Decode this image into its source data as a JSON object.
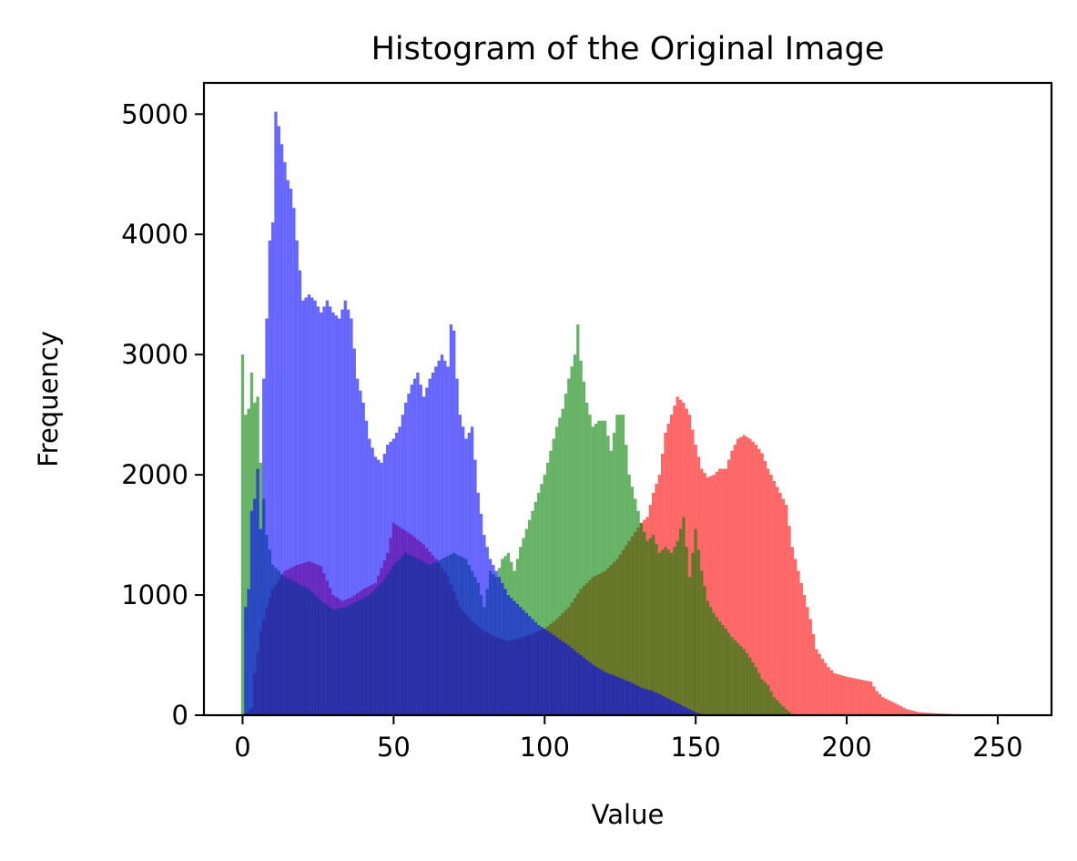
{
  "chart_data": {
    "type": "bar",
    "title": "Histogram of the Original Image",
    "xlabel": "Value",
    "ylabel": "Frequency",
    "xlim": [
      -12.8,
      267.8
    ],
    "ylim": [
      0,
      5260
    ],
    "xticks": [
      0,
      50,
      100,
      150,
      200,
      250
    ],
    "yticks": [
      0,
      1000,
      2000,
      3000,
      4000,
      5000
    ],
    "grid": false,
    "legend": "none",
    "bar_width": 1,
    "colors": {
      "red": "#ff0000",
      "green": "#008000",
      "blue": "#0000ff"
    },
    "opacity": 0.6,
    "series": [
      {
        "color": "red",
        "points": [
          [
            0,
            0
          ],
          [
            3,
            60
          ],
          [
            4,
            350
          ],
          [
            6,
            700
          ],
          [
            8,
            900
          ],
          [
            10,
            1050
          ],
          [
            14,
            1200
          ],
          [
            18,
            1250
          ],
          [
            22,
            1280
          ],
          [
            26,
            1240
          ],
          [
            30,
            1000
          ],
          [
            33,
            950
          ],
          [
            36,
            980
          ],
          [
            40,
            1050
          ],
          [
            44,
            1100
          ],
          [
            48,
            1350
          ],
          [
            50,
            1600
          ],
          [
            53,
            1550
          ],
          [
            56,
            1500
          ],
          [
            60,
            1420
          ],
          [
            64,
            1300
          ],
          [
            68,
            1150
          ],
          [
            72,
            900
          ],
          [
            76,
            780
          ],
          [
            80,
            700
          ],
          [
            84,
            650
          ],
          [
            88,
            620
          ],
          [
            92,
            640
          ],
          [
            96,
            680
          ],
          [
            100,
            720
          ],
          [
            104,
            800
          ],
          [
            108,
            900
          ],
          [
            112,
            1050
          ],
          [
            116,
            1150
          ],
          [
            120,
            1200
          ],
          [
            124,
            1300
          ],
          [
            128,
            1450
          ],
          [
            132,
            1600
          ],
          [
            134,
            1650
          ],
          [
            136,
            1850
          ],
          [
            138,
            2000
          ],
          [
            140,
            2350
          ],
          [
            142,
            2500
          ],
          [
            144,
            2650
          ],
          [
            146,
            2600
          ],
          [
            148,
            2500
          ],
          [
            150,
            2250
          ],
          [
            152,
            2050
          ],
          [
            154,
            1980
          ],
          [
            156,
            2000
          ],
          [
            158,
            2050
          ],
          [
            160,
            2050
          ],
          [
            162,
            2200
          ],
          [
            164,
            2300
          ],
          [
            166,
            2330
          ],
          [
            168,
            2300
          ],
          [
            170,
            2250
          ],
          [
            172,
            2180
          ],
          [
            174,
            2050
          ],
          [
            176,
            1950
          ],
          [
            178,
            1850
          ],
          [
            180,
            1750
          ],
          [
            182,
            1400
          ],
          [
            184,
            1200
          ],
          [
            186,
            1000
          ],
          [
            188,
            800
          ],
          [
            190,
            550
          ],
          [
            192,
            470
          ],
          [
            194,
            400
          ],
          [
            196,
            350
          ],
          [
            200,
            320
          ],
          [
            204,
            300
          ],
          [
            208,
            280
          ],
          [
            210,
            200
          ],
          [
            212,
            150
          ],
          [
            216,
            100
          ],
          [
            220,
            50
          ],
          [
            224,
            25
          ],
          [
            230,
            15
          ],
          [
            236,
            8
          ],
          [
            240,
            3
          ],
          [
            250,
            0
          ],
          [
            255,
            0
          ]
        ]
      },
      {
        "color": "green",
        "points": [
          [
            0,
            3000
          ],
          [
            1,
            2500
          ],
          [
            2,
            2550
          ],
          [
            3,
            2850
          ],
          [
            4,
            2600
          ],
          [
            5,
            2650
          ],
          [
            6,
            2100
          ],
          [
            8,
            1500
          ],
          [
            10,
            1250
          ],
          [
            14,
            1150
          ],
          [
            18,
            1100
          ],
          [
            22,
            1050
          ],
          [
            26,
            950
          ],
          [
            30,
            880
          ],
          [
            34,
            900
          ],
          [
            38,
            950
          ],
          [
            42,
            1000
          ],
          [
            46,
            1100
          ],
          [
            50,
            1250
          ],
          [
            54,
            1350
          ],
          [
            58,
            1300
          ],
          [
            62,
            1250
          ],
          [
            66,
            1300
          ],
          [
            70,
            1350
          ],
          [
            74,
            1300
          ],
          [
            78,
            1100
          ],
          [
            80,
            900
          ],
          [
            82,
            1200
          ],
          [
            84,
            1150
          ],
          [
            86,
            1300
          ],
          [
            88,
            1350
          ],
          [
            90,
            1200
          ],
          [
            92,
            1400
          ],
          [
            94,
            1550
          ],
          [
            96,
            1700
          ],
          [
            98,
            1850
          ],
          [
            100,
            2000
          ],
          [
            102,
            2200
          ],
          [
            104,
            2400
          ],
          [
            106,
            2550
          ],
          [
            108,
            2800
          ],
          [
            110,
            3000
          ],
          [
            111,
            3250
          ],
          [
            112,
            2950
          ],
          [
            114,
            2600
          ],
          [
            116,
            2400
          ],
          [
            118,
            2450
          ],
          [
            120,
            2450
          ],
          [
            122,
            2200
          ],
          [
            124,
            2500
          ],
          [
            126,
            2500
          ],
          [
            128,
            2000
          ],
          [
            130,
            1800
          ],
          [
            132,
            1600
          ],
          [
            134,
            1450
          ],
          [
            136,
            1500
          ],
          [
            138,
            1350
          ],
          [
            140,
            1400
          ],
          [
            142,
            1350
          ],
          [
            144,
            1450
          ],
          [
            146,
            1650
          ],
          [
            148,
            1150
          ],
          [
            150,
            1550
          ],
          [
            152,
            1200
          ],
          [
            154,
            950
          ],
          [
            156,
            850
          ],
          [
            158,
            780
          ],
          [
            160,
            720
          ],
          [
            162,
            650
          ],
          [
            164,
            600
          ],
          [
            166,
            550
          ],
          [
            168,
            480
          ],
          [
            170,
            400
          ],
          [
            172,
            300
          ],
          [
            174,
            250
          ],
          [
            176,
            150
          ],
          [
            178,
            100
          ],
          [
            180,
            50
          ],
          [
            182,
            10
          ],
          [
            184,
            0
          ],
          [
            255,
            0
          ]
        ]
      },
      {
        "color": "blue",
        "points": [
          [
            0,
            0
          ],
          [
            1,
            900
          ],
          [
            2,
            1050
          ],
          [
            3,
            1700
          ],
          [
            4,
            1800
          ],
          [
            5,
            2050
          ],
          [
            6,
            1550
          ],
          [
            7,
            2800
          ],
          [
            8,
            3300
          ],
          [
            9,
            3950
          ],
          [
            10,
            4100
          ],
          [
            11,
            5020
          ],
          [
            12,
            4900
          ],
          [
            13,
            4750
          ],
          [
            14,
            4600
          ],
          [
            15,
            4450
          ],
          [
            16,
            4380
          ],
          [
            17,
            4220
          ],
          [
            18,
            3950
          ],
          [
            19,
            3700
          ],
          [
            20,
            3450
          ],
          [
            22,
            3500
          ],
          [
            24,
            3450
          ],
          [
            26,
            3350
          ],
          [
            28,
            3450
          ],
          [
            30,
            3350
          ],
          [
            32,
            3300
          ],
          [
            34,
            3450
          ],
          [
            36,
            3300
          ],
          [
            38,
            2800
          ],
          [
            40,
            2600
          ],
          [
            42,
            2300
          ],
          [
            44,
            2150
          ],
          [
            46,
            2100
          ],
          [
            48,
            2250
          ],
          [
            50,
            2300
          ],
          [
            52,
            2400
          ],
          [
            54,
            2600
          ],
          [
            56,
            2750
          ],
          [
            58,
            2850
          ],
          [
            60,
            2650
          ],
          [
            62,
            2800
          ],
          [
            64,
            2900
          ],
          [
            66,
            3000
          ],
          [
            68,
            2900
          ],
          [
            69,
            3250
          ],
          [
            70,
            3200
          ],
          [
            71,
            2800
          ],
          [
            72,
            2500
          ],
          [
            74,
            2300
          ],
          [
            76,
            2400
          ],
          [
            78,
            1850
          ],
          [
            80,
            1500
          ],
          [
            82,
            1300
          ],
          [
            84,
            1200
          ],
          [
            86,
            1100
          ],
          [
            88,
            1000
          ],
          [
            90,
            950
          ],
          [
            92,
            900
          ],
          [
            94,
            850
          ],
          [
            96,
            800
          ],
          [
            98,
            750
          ],
          [
            100,
            720
          ],
          [
            104,
            650
          ],
          [
            108,
            580
          ],
          [
            112,
            500
          ],
          [
            116,
            420
          ],
          [
            120,
            360
          ],
          [
            124,
            320
          ],
          [
            128,
            280
          ],
          [
            132,
            230
          ],
          [
            136,
            200
          ],
          [
            140,
            150
          ],
          [
            144,
            100
          ],
          [
            148,
            50
          ],
          [
            150,
            25
          ],
          [
            152,
            10
          ],
          [
            155,
            0
          ],
          [
            255,
            0
          ]
        ]
      }
    ]
  }
}
